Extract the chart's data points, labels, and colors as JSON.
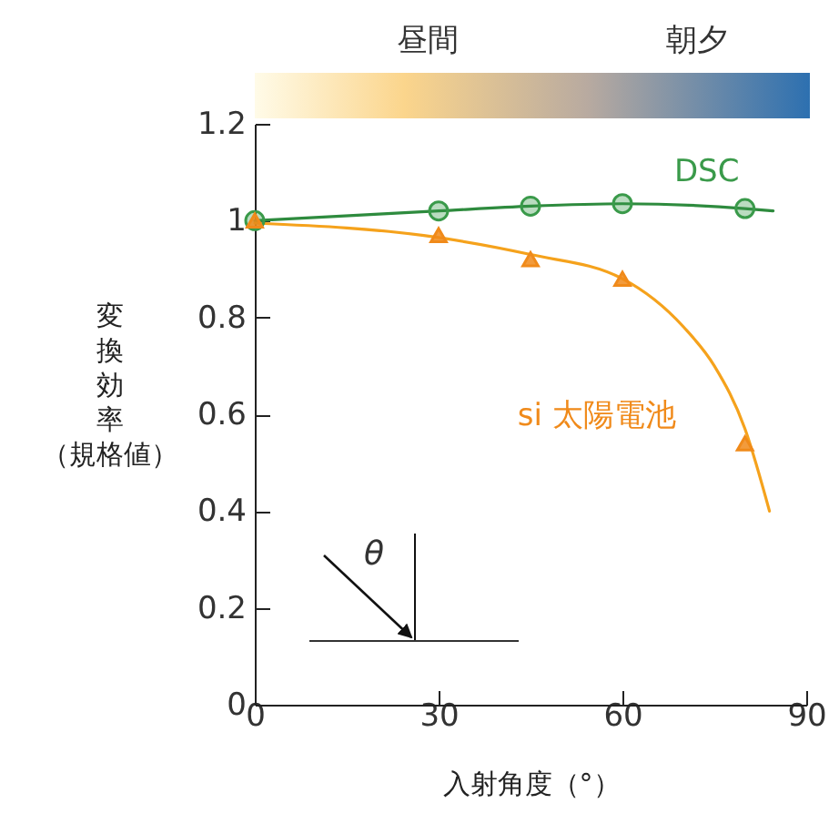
{
  "chart_data": {
    "type": "scatter",
    "xlabel": "入射角度（°）",
    "ylabel": "変換効率（規格値）",
    "annotations": [
      "昼間",
      "朝夕",
      "θ"
    ],
    "xlim": [
      0,
      90
    ],
    "xticks": [
      0,
      30,
      60,
      90
    ],
    "ylim": [
      0,
      1.2
    ],
    "yticks": [
      0,
      0.2,
      0.4,
      0.6,
      0.8,
      1,
      1.2
    ],
    "grid": false,
    "series": [
      {
        "type": "line",
        "color": "#2e8b3e",
        "marker": "none",
        "x": [
          0,
          30,
          45,
          60,
          80,
          84.6
        ],
        "values": [
          1.0,
          1.02,
          1.03,
          1.035,
          1.025,
          1.02
        ]
      },
      {
        "type": "line",
        "color": "#f5a21c",
        "marker": "none",
        "x": [
          0,
          30,
          45,
          60,
          70,
          75,
          80,
          84
        ],
        "values": [
          0.995,
          0.965,
          0.93,
          0.88,
          0.78,
          0.7,
          0.57,
          0.4
        ]
      },
      {
        "type": "scatter",
        "name": "DSC",
        "color": "#3a9a4a",
        "marker": "circle",
        "x": [
          0,
          30,
          45,
          60,
          80
        ],
        "values": [
          1.0,
          1.02,
          1.03,
          1.035,
          1.025
        ]
      },
      {
        "type": "scatter",
        "name": "si 太陽電池",
        "color": "#f08a1a",
        "marker": "triangle",
        "x": [
          0,
          30,
          45,
          60,
          80
        ],
        "values": [
          1.0,
          0.97,
          0.92,
          0.88,
          0.54
        ]
      }
    ]
  }
}
